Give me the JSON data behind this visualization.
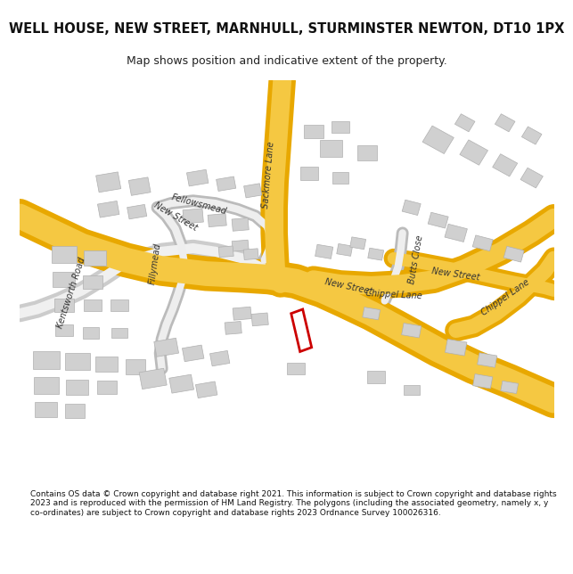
{
  "title": "WELL HOUSE, NEW STREET, MARNHULL, STURMINSTER NEWTON, DT10 1PX",
  "subtitle": "Map shows position and indicative extent of the property.",
  "footer": "Contains OS data © Crown copyright and database right 2021. This information is subject to Crown copyright and database rights 2023 and is reproduced with the permission of HM Land Registry. The polygons (including the associated geometry, namely x, y co-ordinates) are subject to Crown copyright and database rights 2023 Ordnance Survey 100026316.",
  "bg_color": "#f8f8f8",
  "road_yellow": "#f5c842",
  "road_yellow_border": "#e8a800",
  "road_minor_color": "#e0e0e0",
  "building_color": "#d0d0d0",
  "building_edge": "#b0b0b0",
  "plot_color": "#ffffff",
  "plot_edge": "#cc0000",
  "text_color": "#333333",
  "map_bg": "#ffffff"
}
